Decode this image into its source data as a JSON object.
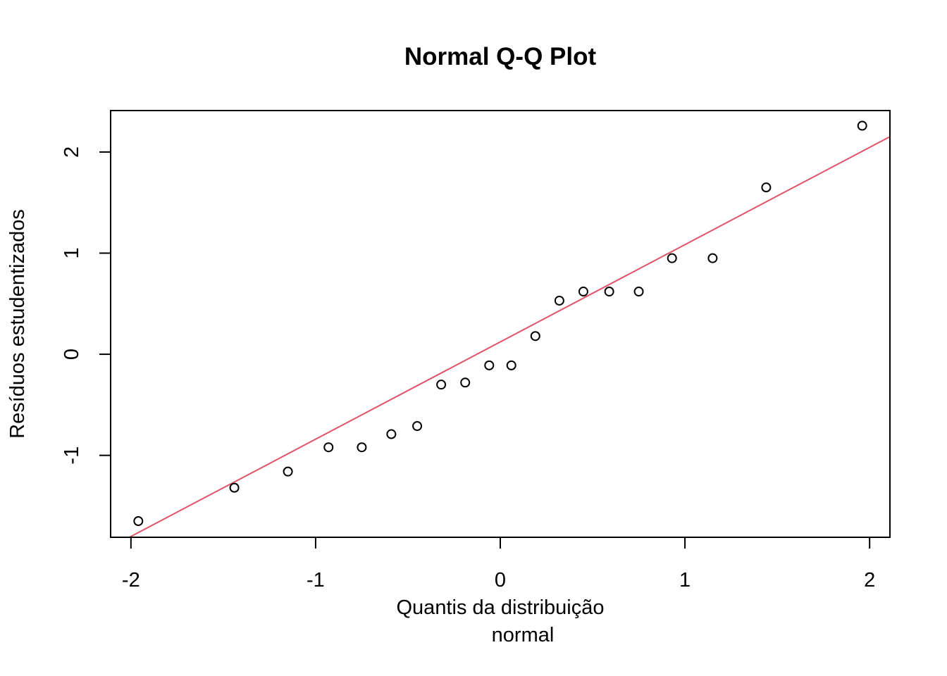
{
  "chart_data": {
    "type": "scatter",
    "title": "Normal Q-Q Plot",
    "xlabel_lines": [
      "Quantis da distribuição",
      "normal"
    ],
    "ylabel": "Resíduos estudentizados",
    "xlim": [
      -2.11,
      2.11
    ],
    "ylim": [
      -1.81,
      2.41
    ],
    "x_ticks": [
      -2,
      -1,
      0,
      1,
      2
    ],
    "x_tick_labels": [
      "-2",
      "-1",
      "0",
      "1",
      "2"
    ],
    "y_ticks": [
      -1,
      0,
      1,
      2
    ],
    "y_tick_labels": [
      "-1",
      "0",
      "1",
      "2"
    ],
    "grid": false,
    "legend": "none",
    "points": {
      "x": [
        -1.96,
        -1.44,
        -1.15,
        -0.93,
        -0.75,
        -0.59,
        -0.45,
        -0.32,
        -0.19,
        -0.06,
        0.06,
        0.19,
        0.32,
        0.45,
        0.59,
        0.75,
        0.93,
        1.15,
        1.44,
        1.96
      ],
      "y": [
        -1.65,
        -1.32,
        -1.16,
        -0.92,
        -0.92,
        -0.79,
        -0.71,
        -0.3,
        -0.28,
        -0.11,
        -0.11,
        0.18,
        0.53,
        0.62,
        0.62,
        0.62,
        0.95,
        0.95,
        1.65,
        2.26
      ]
    },
    "reference_line": {
      "intercept": 0.122,
      "slope": 0.962
    },
    "colors": {
      "points": "#000000",
      "reference_line": "#DF536B"
    }
  }
}
